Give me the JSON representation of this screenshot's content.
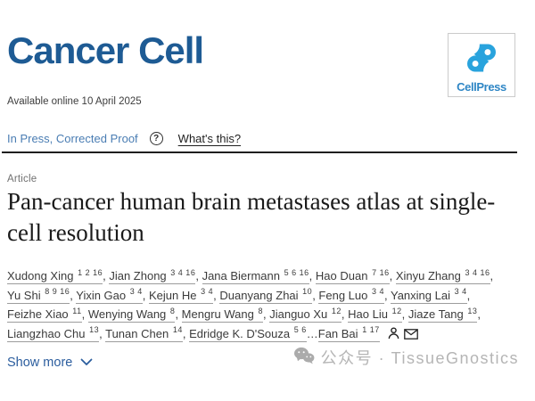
{
  "colors": {
    "brand": "#1e5b94",
    "logo_mark": "#29a3dd",
    "logo_text": "#2e86c5",
    "status_blue": "#4a7db3",
    "link_blue": "#2b5d9e",
    "watermark": "#b5b5b5"
  },
  "header": {
    "journal_title": "Cancer Cell",
    "publisher_logo": {
      "label": "CellPress",
      "icon": "cellpress-mark-icon"
    }
  },
  "meta": {
    "available_online": "Available online 10 April 2025",
    "status": "In Press, Corrected Proof",
    "help_glyph": "?",
    "whats_this": "What's this?"
  },
  "article": {
    "type_label": "Article",
    "title": "Pan-cancer human brain metastases atlas at single-cell resolution"
  },
  "authors": {
    "separator": ", ",
    "ellipsis": "…",
    "list": [
      {
        "name": "Xudong Xing",
        "sup": "1 2 16"
      },
      {
        "name": "Jian Zhong",
        "sup": "3 4 16"
      },
      {
        "name": "Jana Biermann",
        "sup": "5 6 16"
      },
      {
        "name": "Hao Duan",
        "sup": "7 16"
      },
      {
        "name": "Xinyu Zhang",
        "sup": "3 4 16"
      },
      {
        "name": "Yu Shi",
        "sup": "8 9 16"
      },
      {
        "name": "Yixin Gao",
        "sup": "3 4"
      },
      {
        "name": "Kejun He",
        "sup": "3 4"
      },
      {
        "name": "Duanyang Zhai",
        "sup": "10"
      },
      {
        "name": "Feng Luo",
        "sup": "3 4"
      },
      {
        "name": "Yanxing Lai",
        "sup": "3 4"
      },
      {
        "name": "Feizhe Xiao",
        "sup": "11"
      },
      {
        "name": "Wenying Wang",
        "sup": "8"
      },
      {
        "name": "Mengru Wang",
        "sup": "8"
      },
      {
        "name": "Jianguo Xu",
        "sup": "12"
      },
      {
        "name": "Hao Liu",
        "sup": "12"
      },
      {
        "name": "Jiaze Tang",
        "sup": "13"
      },
      {
        "name": "Liangzhao Chu",
        "sup": "13"
      },
      {
        "name": "Tunan Chen",
        "sup": "14"
      },
      {
        "name": "Edridge K. D'Souza",
        "sup": "5 6"
      }
    ],
    "last": {
      "name": "Fan Bai",
      "sup": "1 17"
    },
    "icons": [
      "person-icon",
      "envelope-icon"
    ]
  },
  "actions": {
    "show_more": "Show more",
    "show_more_icon": "chevron-down-icon"
  },
  "watermark": {
    "text": "公众号 · TissueGnostics",
    "icon": "wechat-icon"
  }
}
